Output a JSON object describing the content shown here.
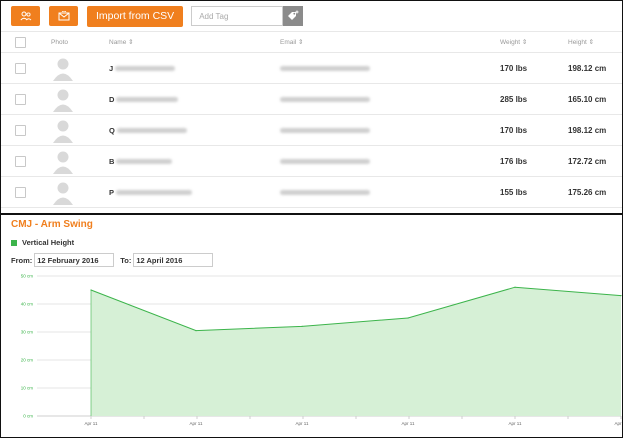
{
  "toolbar": {
    "import_label": "Import from CSV",
    "tag_placeholder": "Add Tag",
    "accent_color": "#f07f1e"
  },
  "table": {
    "headers": {
      "photo": "Photo",
      "name": "Name ⇕",
      "email": "Email ⇕",
      "weight": "Weight ⇕",
      "height": "Height ⇕"
    },
    "rows": [
      {
        "name_initial": "J",
        "weight": "170 lbs",
        "height": "198.12 cm"
      },
      {
        "name_initial": "D",
        "weight": "285 lbs",
        "height": "165.10 cm"
      },
      {
        "name_initial": "Q",
        "weight": "170 lbs",
        "height": "198.12 cm"
      },
      {
        "name_initial": "B",
        "weight": "176 lbs",
        "height": "172.72 cm"
      },
      {
        "name_initial": "P",
        "weight": "155 lbs",
        "height": "175.26 cm"
      }
    ]
  },
  "chart_panel": {
    "title": "CMJ - Arm Swing",
    "from_label": "From:",
    "from_value": "12 February 2016",
    "to_label": "To:",
    "to_value": "12 April 2016"
  },
  "chart_data": {
    "type": "area",
    "title": "",
    "xlabel": "",
    "ylabel": "",
    "legend": "top-left",
    "grid": true,
    "series": [
      {
        "name": "Vertical Height",
        "color": "#3cb44b",
        "fill": "#d6f0d6",
        "values": [
          45,
          30.5,
          32,
          35,
          46,
          43
        ]
      }
    ],
    "x": [
      "Apr 11",
      "Apr 11",
      "Apr 11",
      "Apr 11",
      "Apr 11",
      "Apr 11"
    ],
    "x_tick_labels": [
      "Apr 11",
      "Apr 11",
      "Apr 11",
      "Apr 11",
      "Apr 11",
      "Apr 11"
    ],
    "y_ticks": [
      "0 cm",
      "10 cm",
      "20 cm",
      "30 cm",
      "40 cm",
      "50 cm"
    ],
    "ylim": [
      0,
      50
    ]
  }
}
